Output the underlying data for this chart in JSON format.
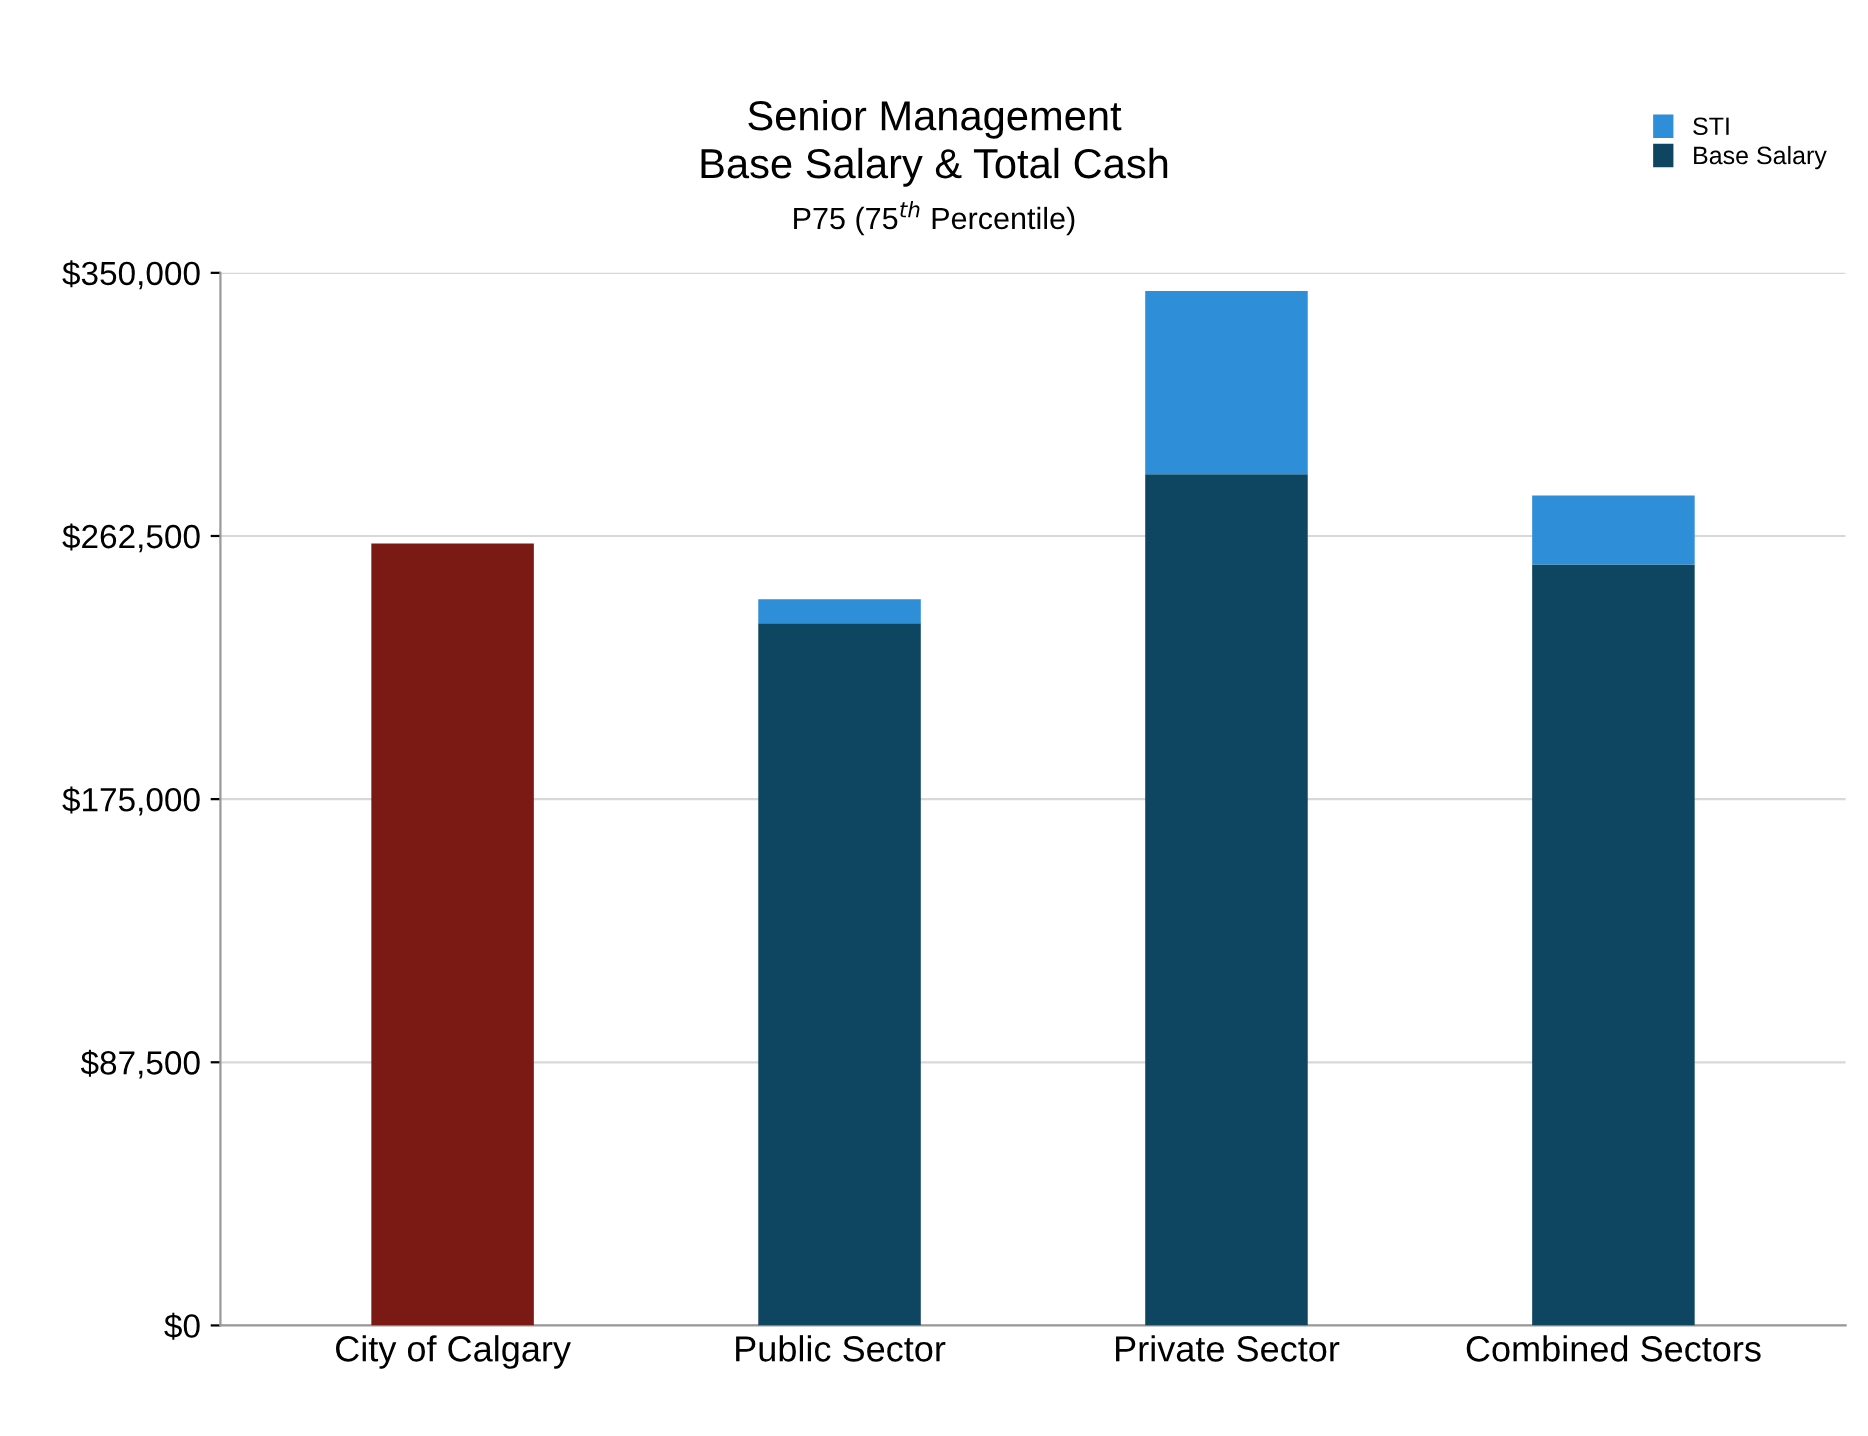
{
  "chart_data": {
    "type": "bar",
    "title": "Senior Management\nBase Salary & Total Cash",
    "subtitle": "P75 (75$^{th}$ Percentile)",
    "categories": [
      "City of Calgary",
      "Public Sector",
      "Private Sector",
      "Combined Sectors"
    ],
    "stacked": true,
    "series": [
      {
        "name": "Base Salary",
        "color": "#0e4560",
        "colors": [
          "#7b1a14",
          "#0e4560",
          "#0e4560",
          "#0e4560"
        ],
        "values": [
          260000,
          233500,
          283000,
          253000
        ]
      },
      {
        "name": "STI",
        "color": "#2e8fd8",
        "values": [
          null,
          8000,
          61000,
          23000
        ]
      }
    ],
    "ylim": [
      0,
      350000
    ],
    "yticks": [
      {
        "value": 0,
        "label": "$0"
      },
      {
        "value": 87500,
        "label": "$87,500"
      },
      {
        "value": 175000,
        "label": "$175,000"
      },
      {
        "value": 262500,
        "label": "$262,500"
      },
      {
        "value": 350000,
        "label": "$350,000"
      }
    ],
    "grid": "y",
    "legend": "top right"
  }
}
